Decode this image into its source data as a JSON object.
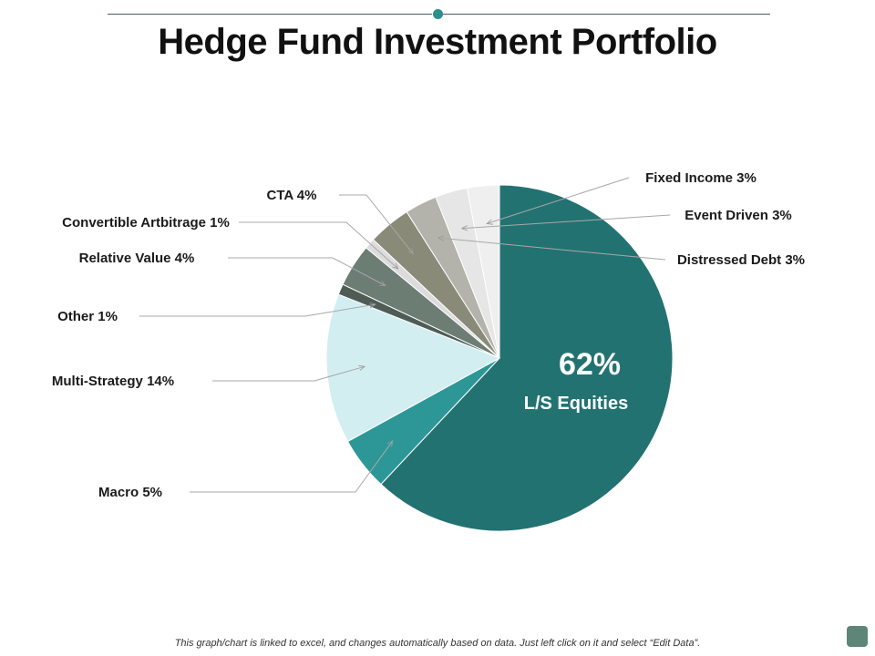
{
  "title": "Hedge Fund Investment Portfolio",
  "footer": "This graph/chart is linked to excel, and changes automatically based on data. Just left click on it and select “Edit Data”.",
  "colors": {
    "accent": "#2e8f8f",
    "title": "#111111"
  },
  "chart_data": {
    "type": "pie",
    "title": "",
    "start_angle_deg": 0,
    "direction": "clockwise",
    "slices": [
      {
        "name": "L/S Equities",
        "value": 62,
        "label": "L/S Equities",
        "value_label": "62%",
        "color": "#237272"
      },
      {
        "name": "Macro",
        "value": 5,
        "label": "Macro 5%",
        "color": "#2d9797"
      },
      {
        "name": "Multi-Strategy",
        "value": 14,
        "label": "Multi-Strategy 14%",
        "color": "#d3eef1"
      },
      {
        "name": "Other",
        "value": 1,
        "label": "Other 1%",
        "color": "#4e5c55"
      },
      {
        "name": "Relative Value",
        "value": 4,
        "label": "Relative Value 4%",
        "color": "#6c7d74"
      },
      {
        "name": "Convertible Artbitrage",
        "value": 1,
        "label": "Convertible Artbitrage 1%",
        "color": "#dcdcdc"
      },
      {
        "name": "CTA",
        "value": 4,
        "label": "CTA 4%",
        "color": "#8a8a78"
      },
      {
        "name": "Distressed Debt",
        "value": 3,
        "label": "Distressed Debt 3%",
        "color": "#b3b3ab"
      },
      {
        "name": "Event Driven",
        "value": 3,
        "label": "Event Driven 3%",
        "color": "#e6e6e6"
      },
      {
        "name": "Fixed Income",
        "value": 3,
        "label": "Fixed Income 3%",
        "color": "#efefef"
      }
    ]
  }
}
